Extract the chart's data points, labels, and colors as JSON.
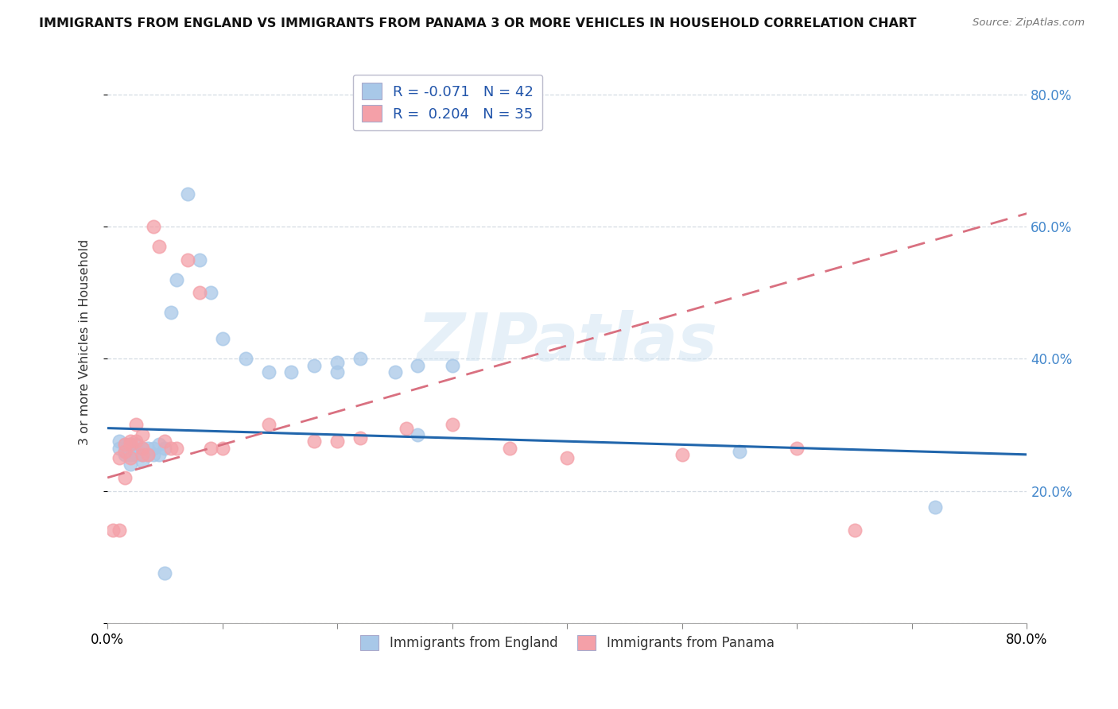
{
  "title": "IMMIGRANTS FROM ENGLAND VS IMMIGRANTS FROM PANAMA 3 OR MORE VEHICLES IN HOUSEHOLD CORRELATION CHART",
  "source": "Source: ZipAtlas.com",
  "ylabel_label": "3 or more Vehicles in Household",
  "xlim": [
    0.0,
    0.8
  ],
  "ylim": [
    0.0,
    0.85
  ],
  "legend_england": "R = -0.071   N = 42",
  "legend_panama": "R =  0.204   N = 35",
  "england_color": "#a8c8e8",
  "panama_color": "#f4a0a8",
  "england_line_color": "#2166ac",
  "panama_line_color": "#d97080",
  "england_scatter_x": [
    0.01,
    0.01,
    0.015,
    0.015,
    0.015,
    0.02,
    0.02,
    0.02,
    0.02,
    0.025,
    0.025,
    0.025,
    0.03,
    0.03,
    0.03,
    0.035,
    0.035,
    0.04,
    0.04,
    0.045,
    0.045,
    0.05,
    0.055,
    0.06,
    0.07,
    0.08,
    0.09,
    0.1,
    0.12,
    0.14,
    0.16,
    0.18,
    0.2,
    0.22,
    0.25,
    0.27,
    0.3,
    0.55,
    0.72,
    0.05,
    0.2,
    0.27
  ],
  "england_scatter_y": [
    0.275,
    0.265,
    0.27,
    0.26,
    0.255,
    0.27,
    0.265,
    0.255,
    0.24,
    0.27,
    0.26,
    0.255,
    0.265,
    0.255,
    0.245,
    0.265,
    0.255,
    0.265,
    0.255,
    0.27,
    0.255,
    0.265,
    0.47,
    0.52,
    0.65,
    0.55,
    0.5,
    0.43,
    0.4,
    0.38,
    0.38,
    0.39,
    0.38,
    0.4,
    0.38,
    0.39,
    0.39,
    0.26,
    0.175,
    0.075,
    0.395,
    0.285
  ],
  "panama_scatter_x": [
    0.005,
    0.01,
    0.01,
    0.015,
    0.015,
    0.015,
    0.02,
    0.02,
    0.02,
    0.025,
    0.025,
    0.03,
    0.03,
    0.03,
    0.035,
    0.04,
    0.045,
    0.05,
    0.055,
    0.06,
    0.07,
    0.08,
    0.09,
    0.1,
    0.14,
    0.18,
    0.2,
    0.22,
    0.26,
    0.3,
    0.35,
    0.4,
    0.5,
    0.6,
    0.65
  ],
  "panama_scatter_y": [
    0.14,
    0.25,
    0.14,
    0.27,
    0.26,
    0.22,
    0.275,
    0.27,
    0.25,
    0.3,
    0.275,
    0.285,
    0.265,
    0.255,
    0.255,
    0.6,
    0.57,
    0.275,
    0.265,
    0.265,
    0.55,
    0.5,
    0.265,
    0.265,
    0.3,
    0.275,
    0.275,
    0.28,
    0.295,
    0.3,
    0.265,
    0.25,
    0.255,
    0.265,
    0.14
  ],
  "england_trend_x": [
    0.0,
    0.8
  ],
  "england_trend_y": [
    0.295,
    0.255
  ],
  "panama_trend_x": [
    0.0,
    0.8
  ],
  "panama_trend_y": [
    0.22,
    0.62
  ],
  "watermark": "ZIPatlas",
  "legend_label_england": "Immigrants from England",
  "legend_label_panama": "Immigrants from Panama",
  "background_color": "#ffffff",
  "grid_color": "#d0d8e0",
  "right_ytick_color": "#4488cc"
}
